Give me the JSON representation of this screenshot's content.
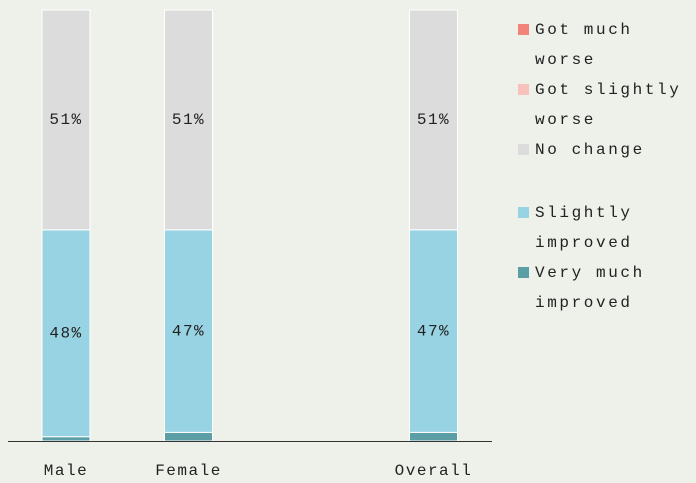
{
  "chart_data": {
    "type": "stacked_bar",
    "categories": [
      "Male",
      "Female",
      null,
      "Overall"
    ],
    "ylim": [
      0,
      100
    ],
    "series": [
      {
        "name": "Got much worse",
        "color": "#f2837a",
        "values": [
          0,
          0,
          null,
          0
        ]
      },
      {
        "name": "Got slightly worse",
        "color": "#f8c1bb",
        "values": [
          0,
          0,
          null,
          0
        ]
      },
      {
        "name": "No change",
        "color": "#dcdcdc",
        "values": [
          51,
          51,
          null,
          51
        ],
        "value_labels": [
          "51%",
          "51%",
          null,
          "51%"
        ]
      },
      {
        "name": "Slightly improved",
        "color": "#98d3e3",
        "values": [
          48,
          47,
          null,
          47
        ],
        "value_labels": [
          "48%",
          "47%",
          null,
          "47%"
        ]
      },
      {
        "name": "Very much improved",
        "color": "#5b9ea5",
        "values": [
          1,
          2,
          null,
          2
        ]
      }
    ]
  }
}
